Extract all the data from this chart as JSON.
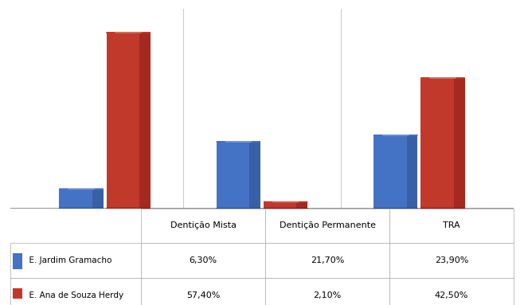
{
  "categories": [
    "Dentição Mista",
    "Dentição Permanente",
    "TRA"
  ],
  "series": [
    {
      "label": "E. Jardim Gramacho",
      "color": "#4472C4",
      "dark_color": "#2E4F8A",
      "values": [
        6.3,
        21.7,
        23.9
      ]
    },
    {
      "label": "E. Ana de Souza Herdy",
      "color": "#C0392B",
      "dark_color": "#8B1A12",
      "values": [
        57.4,
        2.1,
        42.5
      ]
    }
  ],
  "table_headers": [
    "Dentição Mista",
    "Dentição Permanente",
    "TRA"
  ],
  "table_col0_header": "Dentição Permanente",
  "table_rows": [
    [
      "E. Jardim Gramacho",
      "6,30%",
      "21,70%",
      "23,90%"
    ],
    [
      "E. Ana de Souza Herdy",
      "57,40%",
      "2,10%",
      "42,50%"
    ]
  ],
  "ylim": [
    0,
    65
  ],
  "bar_width": 0.28,
  "background_color": "#ffffff",
  "chart_bg": "#ffffff"
}
